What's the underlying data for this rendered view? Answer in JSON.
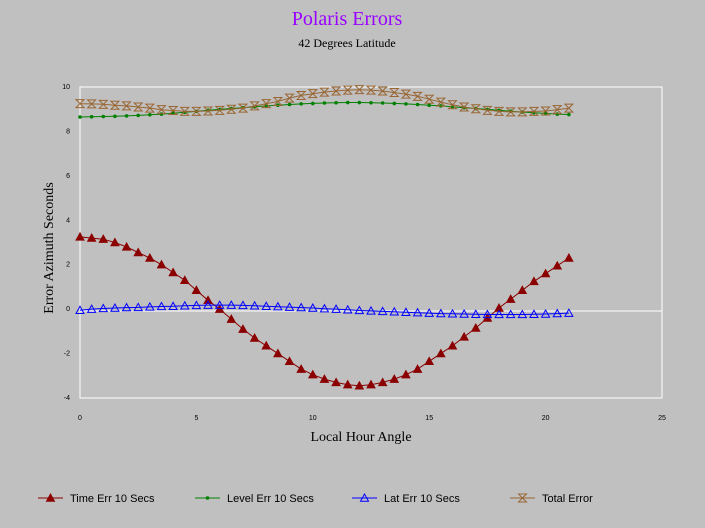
{
  "chart_data": {
    "type": "line",
    "title": "Polaris Errors",
    "subtitle": "42 Degrees Latitude",
    "xlabel": "Local Hour Angle",
    "ylabel": "Error Azimuth Seconds",
    "xlim": [
      0,
      25
    ],
    "ylim": [
      -4,
      10
    ],
    "xticks": [
      0,
      5,
      10,
      15,
      20,
      25
    ],
    "yticks": [
      -4,
      -2,
      0,
      2,
      4,
      6,
      8,
      10
    ],
    "grid": false,
    "legend_position": "bottom",
    "x": [
      0,
      0.5,
      1,
      1.5,
      2,
      2.5,
      3,
      3.5,
      4,
      4.5,
      5,
      5.5,
      6,
      6.5,
      7,
      7.5,
      8,
      8.5,
      9,
      9.5,
      10,
      10.5,
      11,
      11.5,
      12,
      12.5,
      13,
      13.5,
      14,
      14.5,
      15,
      15.5,
      16,
      16.5,
      17,
      17.5,
      18,
      18.5,
      19,
      19.5,
      20,
      20.5,
      21
    ],
    "series": [
      {
        "name": "Time Err 10 Secs",
        "color": "#8b0000",
        "marker": "triangle-filled",
        "values": [
          3.25,
          3.2,
          3.15,
          3.0,
          2.8,
          2.55,
          2.3,
          2.0,
          1.65,
          1.3,
          0.85,
          0.4,
          0.0,
          -0.45,
          -0.9,
          -1.3,
          -1.65,
          -2.0,
          -2.35,
          -2.7,
          -2.95,
          -3.15,
          -3.3,
          -3.4,
          -3.45,
          -3.4,
          -3.3,
          -3.15,
          -2.95,
          -2.7,
          -2.35,
          -2.0,
          -1.65,
          -1.25,
          -0.85,
          -0.4,
          0.05,
          0.45,
          0.85,
          1.25,
          1.6,
          1.95,
          2.3
        ]
      },
      {
        "name": "Level Err 10 Secs",
        "color": "#008000",
        "marker": "dot",
        "values": [
          8.65,
          8.66,
          8.67,
          8.68,
          8.7,
          8.72,
          8.75,
          8.78,
          8.82,
          8.86,
          8.9,
          8.95,
          8.99,
          9.03,
          9.07,
          9.11,
          9.15,
          9.18,
          9.21,
          9.24,
          9.26,
          9.28,
          9.29,
          9.3,
          9.3,
          9.29,
          9.28,
          9.26,
          9.24,
          9.21,
          9.18,
          9.15,
          9.11,
          9.07,
          9.03,
          8.99,
          8.95,
          8.91,
          8.87,
          8.84,
          8.81,
          8.78,
          8.76
        ]
      },
      {
        "name": "Lat Err 10 Secs",
        "color": "#0000ff",
        "marker": "triangle-open",
        "values": [
          -0.05,
          0.0,
          0.03,
          0.05,
          0.07,
          0.08,
          0.1,
          0.12,
          0.13,
          0.15,
          0.17,
          0.18,
          0.18,
          0.18,
          0.17,
          0.15,
          0.13,
          0.11,
          0.09,
          0.07,
          0.05,
          0.02,
          0.0,
          -0.03,
          -0.06,
          -0.08,
          -0.1,
          -0.12,
          -0.14,
          -0.16,
          -0.18,
          -0.2,
          -0.21,
          -0.22,
          -0.23,
          -0.24,
          -0.24,
          -0.24,
          -0.24,
          -0.23,
          -0.22,
          -0.2,
          -0.18
        ]
      },
      {
        "name": "Total Error",
        "color": "#996633",
        "marker": "hourglass",
        "values": [
          9.25,
          9.24,
          9.22,
          9.18,
          9.15,
          9.1,
          9.05,
          8.98,
          8.94,
          8.9,
          8.9,
          8.92,
          8.95,
          9.0,
          9.05,
          9.15,
          9.25,
          9.35,
          9.5,
          9.62,
          9.7,
          9.77,
          9.82,
          9.86,
          9.88,
          9.86,
          9.82,
          9.75,
          9.68,
          9.58,
          9.45,
          9.32,
          9.2,
          9.1,
          9.02,
          8.95,
          8.9,
          8.88,
          8.88,
          8.9,
          8.92,
          8.98,
          9.05
        ]
      }
    ]
  }
}
